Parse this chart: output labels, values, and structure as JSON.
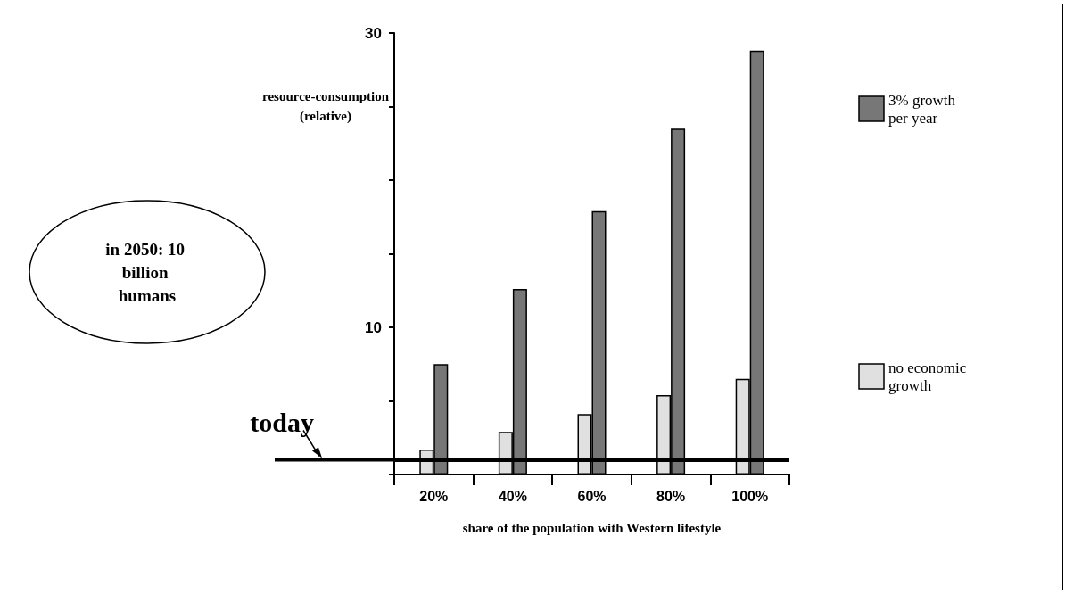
{
  "chart_data": {
    "type": "bar",
    "xlabel": "share of the population with Western lifestyle",
    "ylabel": "resource-consumption (relative)",
    "categories": [
      "20%",
      "40%",
      "60%",
      "80%",
      "100%"
    ],
    "series": [
      {
        "name": "no economic growth",
        "color": "#e0e0e0",
        "values": [
          1.7,
          2.9,
          4.1,
          5.4,
          6.5
        ]
      },
      {
        "name": "3% growth per year",
        "color": "#777777",
        "values": [
          7.5,
          12.6,
          17.9,
          23.5,
          28.8
        ]
      }
    ],
    "ylim": [
      0,
      30
    ],
    "yticks": [
      {
        "value": 0,
        "label": null
      },
      {
        "value": 5,
        "label": null
      },
      10,
      {
        "value": 15,
        "label": null
      },
      {
        "value": 20,
        "label": null
      },
      {
        "value": 25,
        "label": null
      },
      30
    ],
    "ref_lines": [
      {
        "axis": "y",
        "value": 1,
        "label": "today",
        "color": "#000000"
      }
    ],
    "annotations": [
      "in 2050: 10 billion humans"
    ],
    "grid": false,
    "legend": "right"
  }
}
